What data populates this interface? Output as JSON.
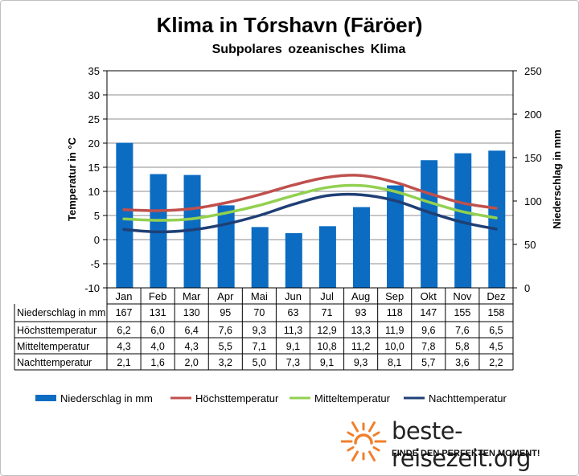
{
  "chart_data": {
    "type": "bar+line",
    "title": "Klima in Tórshavn (Färöer)",
    "subtitle": "Subpolares ozeanisches Klima",
    "categories": [
      "Jan",
      "Feb",
      "Mar",
      "Apr",
      "Mai",
      "Jun",
      "Jul",
      "Aug",
      "Sep",
      "Okt",
      "Nov",
      "Dez"
    ],
    "y_left": {
      "label": "Temperatur in °C",
      "range": [
        -10,
        35
      ],
      "ticks": [
        "35",
        "30",
        "25",
        "20",
        "15",
        "10",
        "5",
        "0",
        "-5",
        "-10"
      ]
    },
    "y_right": {
      "label": "Niederschlag in mm",
      "range": [
        0,
        250
      ],
      "ticks": [
        "250",
        "200",
        "150",
        "100",
        "50",
        "0"
      ]
    },
    "grid": true,
    "legend_position": "bottom",
    "series": [
      {
        "name": "Niederschlag in mm",
        "type": "bar",
        "axis": "right",
        "color": "#0b6cc2",
        "values": [
          167,
          131,
          130,
          95,
          70,
          63,
          71,
          93,
          118,
          147,
          155,
          158
        ],
        "labels": [
          "167",
          "131",
          "130",
          "95",
          "70",
          "63",
          "71",
          "93",
          "118",
          "147",
          "155",
          "158"
        ]
      },
      {
        "name": "Höchsttemperatur",
        "type": "line",
        "axis": "left",
        "color": "#c0504d",
        "values": [
          6.2,
          6.0,
          6.4,
          7.6,
          9.3,
          11.3,
          12.9,
          13.3,
          11.9,
          9.6,
          7.6,
          6.5
        ],
        "labels": [
          "6,2",
          "6,0",
          "6,4",
          "7,6",
          "9,3",
          "11,3",
          "12,9",
          "13,3",
          "11,9",
          "9,6",
          "7,6",
          "6,5"
        ]
      },
      {
        "name": "Mitteltemperatur",
        "type": "line",
        "axis": "left",
        "color": "#92d050",
        "values": [
          4.3,
          4.0,
          4.3,
          5.5,
          7.1,
          9.1,
          10.8,
          11.2,
          10.0,
          7.8,
          5.8,
          4.5
        ],
        "labels": [
          "4,3",
          "4,0",
          "4,3",
          "5,5",
          "7,1",
          "9,1",
          "10,8",
          "11,2",
          "10,0",
          "7,8",
          "5,8",
          "4,5"
        ]
      },
      {
        "name": "Nachttemperatur",
        "type": "line",
        "axis": "left",
        "color": "#1f3f75",
        "values": [
          2.1,
          1.6,
          2.0,
          3.2,
          5.0,
          7.3,
          9.1,
          9.3,
          8.1,
          5.7,
          3.6,
          2.2
        ],
        "labels": [
          "2,1",
          "1,6",
          "2,0",
          "3,2",
          "5,0",
          "7,3",
          "9,1",
          "9,3",
          "8,1",
          "5,7",
          "3,6",
          "2,2"
        ]
      }
    ]
  },
  "logo": {
    "name": "beste-reisezeit.org",
    "tagline": "FINDE DEN PERFEKTEN MOMENT!",
    "sun_color": "#f07f2d"
  }
}
